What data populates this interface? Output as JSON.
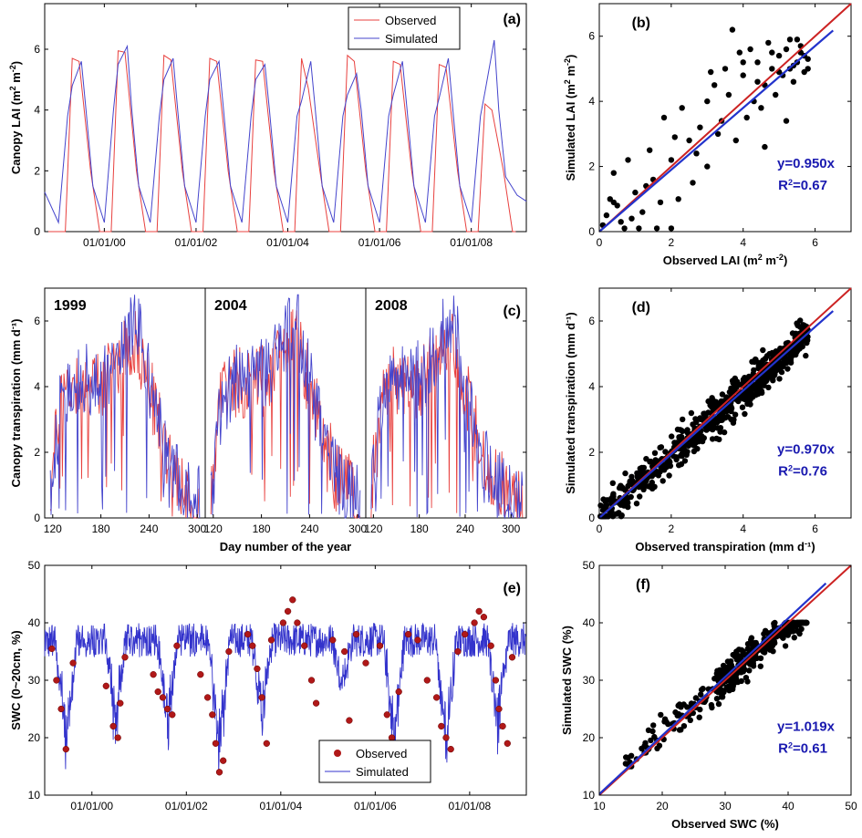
{
  "chart_data": [
    {
      "id": "a",
      "type": "line",
      "panel_label": "(a)",
      "ylabel": "Canopy LAI (m² m⁻²)",
      "ylim": [
        0,
        7.5
      ],
      "yticks": [
        0,
        2,
        4,
        6
      ],
      "x_unit": "year",
      "xlim": [
        1998.7,
        2009.2
      ],
      "xticks": [
        2000,
        2002,
        2004,
        2006,
        2008
      ],
      "xtick_labels": [
        "01/01/00",
        "01/01/02",
        "01/01/04",
        "01/01/06",
        "01/01/08"
      ],
      "legend": {
        "position": "top-center",
        "entries": [
          "Observed",
          "Simulated"
        ]
      },
      "series": [
        {
          "name": "Observed",
          "color": "#e8413f",
          "x": [
            1998.7,
            1998.78,
            1999.15,
            1999.3,
            1999.45,
            1999.7,
            1999.9,
            1999.97,
            2000.15,
            2000.3,
            2000.45,
            2000.7,
            2000.9,
            2000.97,
            2001.15,
            2001.3,
            2001.45,
            2001.7,
            2001.9,
            2001.97,
            2002.15,
            2002.3,
            2002.45,
            2002.7,
            2002.9,
            2002.97,
            2003.15,
            2003.3,
            2003.45,
            2003.7,
            2003.9,
            2003.97,
            2004.15,
            2004.3,
            2004.45,
            2004.7,
            2004.9,
            2004.97,
            2005.15,
            2005.3,
            2005.45,
            2005.7,
            2005.9,
            2005.97,
            2006.15,
            2006.3,
            2006.45,
            2006.7,
            2006.9,
            2006.97,
            2007.15,
            2007.3,
            2007.45,
            2007.7,
            2007.9,
            2007.97,
            2008.15,
            2008.3,
            2008.45,
            2008.7,
            2008.9,
            2008.97
          ],
          "y": [
            0,
            0,
            0,
            5.7,
            5.6,
            2.0,
            0,
            0,
            0,
            5.95,
            5.9,
            2.0,
            0,
            0,
            0,
            5.8,
            5.65,
            2.0,
            0,
            0,
            0,
            5.7,
            5.6,
            2.0,
            0,
            0,
            0,
            5.65,
            5.6,
            2.0,
            0,
            0,
            0,
            5.7,
            4.7,
            2.0,
            0,
            0,
            0,
            5.8,
            5.6,
            2.0,
            0,
            0,
            0,
            5.6,
            5.5,
            2.0,
            0,
            0,
            0,
            5.5,
            5.4,
            2.0,
            0,
            0,
            0,
            4.2,
            4.0,
            2.0,
            0,
            0
          ]
        },
        {
          "name": "Simulated",
          "color": "#4444cc",
          "x": [
            1998.7,
            1999.0,
            1999.2,
            1999.3,
            1999.5,
            1999.6,
            1999.75,
            2000.0,
            2000.2,
            2000.3,
            2000.5,
            2000.6,
            2000.75,
            2001.0,
            2001.2,
            2001.3,
            2001.5,
            2001.6,
            2001.75,
            2002.0,
            2002.2,
            2002.3,
            2002.5,
            2002.6,
            2002.75,
            2003.0,
            2003.2,
            2003.3,
            2003.5,
            2003.6,
            2003.75,
            2004.0,
            2004.2,
            2004.3,
            2004.5,
            2004.6,
            2004.75,
            2005.0,
            2005.2,
            2005.3,
            2005.5,
            2005.6,
            2005.75,
            2006.0,
            2006.2,
            2006.3,
            2006.5,
            2006.6,
            2006.75,
            2007.0,
            2007.2,
            2007.3,
            2007.5,
            2007.6,
            2007.75,
            2008.0,
            2008.2,
            2008.3,
            2008.5,
            2008.6,
            2008.75,
            2009.0,
            2009.2
          ],
          "y": [
            1.3,
            0.3,
            3.8,
            4.8,
            5.6,
            4.0,
            1.5,
            0.3,
            4.0,
            5.5,
            6.1,
            4.0,
            1.5,
            0.3,
            3.8,
            5.0,
            5.7,
            4.0,
            1.5,
            0.3,
            3.8,
            5.0,
            5.6,
            4.0,
            1.5,
            0.3,
            3.8,
            5.0,
            5.5,
            4.0,
            1.5,
            0.3,
            3.8,
            4.3,
            5.6,
            4.0,
            1.5,
            0.3,
            3.8,
            4.5,
            5.2,
            4.0,
            1.5,
            0.3,
            3.8,
            4.5,
            5.6,
            4.0,
            1.5,
            0.3,
            3.8,
            4.4,
            5.7,
            4.0,
            1.5,
            0.3,
            3.8,
            4.6,
            6.3,
            4.0,
            1.8,
            1.2,
            1.0
          ]
        }
      ]
    },
    {
      "id": "b",
      "type": "scatter",
      "panel_label": "(b)",
      "xlabel": "Observed LAI (m² m⁻²)",
      "ylabel": "Simulated LAI (m² m⁻²)",
      "xlim": [
        0,
        7
      ],
      "ylim": [
        0,
        7
      ],
      "xticks": [
        0,
        2,
        4,
        6
      ],
      "yticks": [
        0,
        2,
        4,
        6
      ],
      "fit_text": "y=0.950x",
      "r2_text": "R²=0.67",
      "one_to_one_color": "#cc2222",
      "fit_color": "#2233cc",
      "fit_slope": 0.95,
      "fit_xmax": 6.5,
      "points": [
        [
          0.1,
          0.2
        ],
        [
          0.2,
          0.5
        ],
        [
          0.3,
          1.0
        ],
        [
          0.4,
          1.8
        ],
        [
          0.5,
          0.8
        ],
        [
          0.6,
          0.3
        ],
        [
          0.8,
          2.2
        ],
        [
          1.0,
          1.2
        ],
        [
          1.2,
          0.6
        ],
        [
          1.4,
          2.5
        ],
        [
          1.5,
          1.6
        ],
        [
          1.7,
          0.9
        ],
        [
          1.8,
          3.5
        ],
        [
          2.0,
          2.2
        ],
        [
          2.2,
          1.0
        ],
        [
          2.3,
          3.8
        ],
        [
          2.5,
          2.8
        ],
        [
          2.6,
          1.5
        ],
        [
          2.8,
          3.2
        ],
        [
          3.0,
          4.0
        ],
        [
          3.0,
          2.0
        ],
        [
          3.2,
          4.5
        ],
        [
          3.3,
          3.0
        ],
        [
          3.5,
          5.0
        ],
        [
          3.6,
          4.2
        ],
        [
          3.7,
          6.2
        ],
        [
          3.8,
          2.8
        ],
        [
          3.9,
          5.5
        ],
        [
          4.0,
          4.8
        ],
        [
          4.1,
          3.5
        ],
        [
          4.2,
          5.6
        ],
        [
          4.3,
          4.0
        ],
        [
          4.4,
          5.2
        ],
        [
          4.5,
          3.8
        ],
        [
          4.6,
          4.5
        ],
        [
          4.7,
          5.8
        ],
        [
          4.8,
          5.0
        ],
        [
          4.9,
          4.2
        ],
        [
          5.0,
          5.4
        ],
        [
          5.1,
          4.8
        ],
        [
          5.2,
          5.6
        ],
        [
          5.3,
          5.0
        ],
        [
          5.4,
          4.6
        ],
        [
          5.5,
          5.9
        ],
        [
          5.5,
          5.2
        ],
        [
          5.6,
          5.5
        ],
        [
          5.7,
          4.9
        ],
        [
          5.8,
          5.3
        ],
        [
          5.2,
          3.4
        ],
        [
          4.6,
          2.6
        ],
        [
          0.7,
          0.1
        ],
        [
          1.1,
          0.1
        ],
        [
          1.6,
          0.1
        ],
        [
          2.0,
          0.1
        ],
        [
          0.4,
          0.9
        ],
        [
          0.9,
          0.4
        ],
        [
          5.4,
          5.1
        ],
        [
          5.6,
          5.7
        ],
        [
          5.7,
          5.4
        ],
        [
          5.3,
          5.9
        ],
        [
          5.0,
          4.9
        ],
        [
          4.8,
          5.5
        ],
        [
          4.4,
          4.6
        ],
        [
          3.4,
          3.4
        ],
        [
          2.7,
          2.4
        ],
        [
          2.1,
          2.9
        ],
        [
          1.3,
          1.4
        ],
        [
          3.1,
          4.9
        ],
        [
          4.0,
          5.2
        ],
        [
          5.8,
          5.0
        ]
      ]
    },
    {
      "id": "c",
      "type": "line",
      "panel_label": "(c)",
      "ylabel": "Canopy transpiration (mm d⁻¹)",
      "xlabel": "Day number of the year",
      "ylim": [
        0,
        7
      ],
      "yticks": [
        0,
        2,
        4,
        6
      ],
      "subpanels": [
        {
          "year": "1999",
          "xlim": [
            110,
            310
          ],
          "xticks": [
            120,
            180,
            240,
            300
          ]
        },
        {
          "year": "2004",
          "xlim": [
            110,
            310
          ],
          "xticks": [
            120,
            180,
            240,
            300
          ]
        },
        {
          "year": "2008",
          "xlim": [
            110,
            320
          ],
          "xticks": [
            120,
            180,
            240,
            300
          ]
        }
      ],
      "series": [
        {
          "name": "Observed",
          "color": "#e8413f",
          "envelope_x": [
            115,
            130,
            150,
            170,
            190,
            210,
            225,
            240,
            260,
            280,
            300
          ],
          "envelope_y": [
            0.3,
            3.8,
            4.2,
            4.0,
            4.3,
            5.2,
            5.4,
            4.0,
            2.2,
            1.2,
            0.6
          ]
        },
        {
          "name": "Simulated",
          "color": "#4444cc",
          "envelope_x": [
            115,
            130,
            150,
            170,
            190,
            210,
            225,
            240,
            260,
            280,
            300
          ],
          "envelope_y": [
            0.2,
            3.5,
            4.3,
            4.2,
            4.5,
            5.6,
            6.1,
            4.2,
            2.0,
            1.0,
            0.6
          ]
        }
      ]
    },
    {
      "id": "d",
      "type": "scatter",
      "panel_label": "(d)",
      "xlabel": "Observed transpiration (mm d⁻¹)",
      "ylabel": "Simulated transpiration (mm d⁻¹)",
      "xlim": [
        0,
        7
      ],
      "ylim": [
        0,
        7
      ],
      "xticks": [
        0,
        2,
        4,
        6
      ],
      "yticks": [
        0,
        2,
        4,
        6
      ],
      "fit_text": "y=0.970x",
      "r2_text": "R²=0.76",
      "one_to_one_color": "#cc2222",
      "fit_color": "#2233cc",
      "fit_slope": 0.97,
      "fit_xmax": 6.5,
      "point_count": 650,
      "point_spread": 0.55,
      "point_xrange": [
        0,
        5.8
      ]
    },
    {
      "id": "e",
      "type": "line",
      "panel_label": "(e)",
      "ylabel": "SWC (0~20cm, %)",
      "ylim": [
        10,
        50
      ],
      "yticks": [
        10,
        20,
        30,
        40,
        50
      ],
      "x_unit": "year",
      "xlim": [
        1999.0,
        2009.2
      ],
      "xticks": [
        2000,
        2002,
        2004,
        2006,
        2008
      ],
      "xtick_labels": [
        "01/01/00",
        "01/01/02",
        "01/01/04",
        "01/01/06",
        "01/01/08"
      ],
      "legend": {
        "position": "bottom-center",
        "entries": [
          "Observed",
          "Simulated"
        ]
      },
      "series": [
        {
          "name": "Simulated",
          "color": "#3333cc",
          "dips": [
            [
              1999.45,
              16
            ],
            [
              2000.5,
              20
            ],
            [
              2001.6,
              20
            ],
            [
              2002.7,
              14
            ],
            [
              2003.6,
              22
            ],
            [
              2005.3,
              28
            ],
            [
              2006.4,
              17
            ],
            [
              2007.5,
              16
            ],
            [
              2008.6,
              19
            ]
          ]
        },
        {
          "name": "Observed",
          "color": "#b01818",
          "points": [
            [
              1999.15,
              35.5
            ],
            [
              1999.25,
              30
            ],
            [
              1999.35,
              25
            ],
            [
              1999.45,
              18
            ],
            [
              1999.6,
              33
            ],
            [
              2000.3,
              29
            ],
            [
              2000.45,
              22
            ],
            [
              2000.55,
              20
            ],
            [
              2000.6,
              26
            ],
            [
              2000.7,
              34
            ],
            [
              2001.3,
              31
            ],
            [
              2001.4,
              28
            ],
            [
              2001.5,
              27
            ],
            [
              2001.6,
              25
            ],
            [
              2001.7,
              24
            ],
            [
              2001.8,
              36
            ],
            [
              2002.3,
              31
            ],
            [
              2002.45,
              27
            ],
            [
              2002.55,
              24
            ],
            [
              2002.62,
              19
            ],
            [
              2002.7,
              14
            ],
            [
              2002.78,
              16
            ],
            [
              2002.9,
              35
            ],
            [
              2003.3,
              38
            ],
            [
              2003.4,
              36
            ],
            [
              2003.5,
              32
            ],
            [
              2003.6,
              27
            ],
            [
              2003.7,
              19
            ],
            [
              2003.8,
              37
            ],
            [
              2004.05,
              40
            ],
            [
              2004.15,
              42
            ],
            [
              2004.25,
              44
            ],
            [
              2004.35,
              40
            ],
            [
              2004.5,
              36
            ],
            [
              2004.65,
              30
            ],
            [
              2004.75,
              26
            ],
            [
              2005.1,
              37
            ],
            [
              2005.35,
              35
            ],
            [
              2005.45,
              23
            ],
            [
              2005.6,
              38
            ],
            [
              2005.8,
              33
            ],
            [
              2006.1,
              36
            ],
            [
              2006.25,
              24
            ],
            [
              2006.35,
              20
            ],
            [
              2006.5,
              28
            ],
            [
              2006.7,
              38
            ],
            [
              2006.9,
              37
            ],
            [
              2007.1,
              30
            ],
            [
              2007.3,
              27
            ],
            [
              2007.4,
              22
            ],
            [
              2007.5,
              20
            ],
            [
              2007.6,
              18
            ],
            [
              2007.75,
              35
            ],
            [
              2007.9,
              38
            ],
            [
              2008.1,
              40
            ],
            [
              2008.2,
              42
            ],
            [
              2008.3,
              41
            ],
            [
              2008.45,
              36
            ],
            [
              2008.55,
              30
            ],
            [
              2008.62,
              25
            ],
            [
              2008.7,
              22
            ],
            [
              2008.8,
              19
            ],
            [
              2008.9,
              34
            ]
          ]
        }
      ]
    },
    {
      "id": "f",
      "type": "scatter",
      "panel_label": "(f)",
      "xlabel": "Observed SWC (%)",
      "ylabel": "Simulated SWC (%)",
      "xlim": [
        10,
        50
      ],
      "ylim": [
        10,
        50
      ],
      "xticks": [
        10,
        20,
        30,
        40,
        50
      ],
      "yticks": [
        10,
        20,
        30,
        40,
        50
      ],
      "fit_text": "y=1.019x",
      "r2_text": "R²=0.61",
      "one_to_one_color": "#cc2222",
      "fit_color": "#2233cc",
      "fit_slope": 1.019,
      "fit_xmax": 46,
      "point_count": 380,
      "point_spread": 2.8,
      "point_xrange": [
        14,
        43
      ]
    }
  ]
}
